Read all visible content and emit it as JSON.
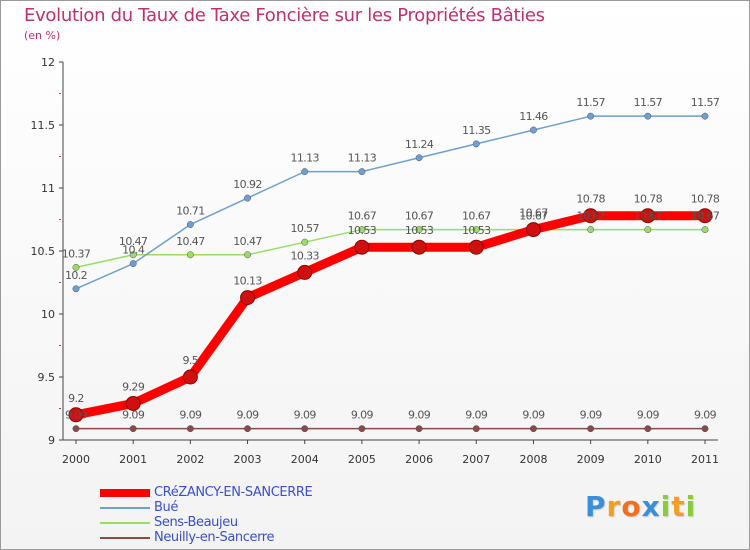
{
  "chart_data": {
    "type": "line",
    "title": "Evolution du Taux de Taxe Foncière sur les Propriétés Bâties",
    "subtitle": "(en %)",
    "x": [
      "2000",
      "2001",
      "2002",
      "2003",
      "2004",
      "2005",
      "2006",
      "2007",
      "2008",
      "2009",
      "2010",
      "2011"
    ],
    "ylim": [
      9,
      12
    ],
    "yticks": [
      "9",
      "9.5",
      "10",
      "10.5",
      "11",
      "11.5",
      "12"
    ],
    "grid": false,
    "legend_position": "bottom-left",
    "series": [
      {
        "name": "CRéZANCY-EN-SANCERRE",
        "color": "#ff0000",
        "values": [
          9.2,
          9.29,
          9.5,
          10.13,
          10.33,
          10.53,
          10.53,
          10.53,
          10.67,
          10.78,
          10.78,
          10.78
        ],
        "labels": [
          "9.2",
          "9.29",
          "9.5",
          "10.13",
          "10.33",
          "10.53",
          "10.53",
          "10.53",
          "10.67",
          "10.78",
          "10.78",
          "10.78"
        ]
      },
      {
        "name": "Bué",
        "color": "#6f9fd0",
        "values": [
          10.2,
          10.4,
          10.71,
          10.92,
          11.13,
          11.13,
          11.24,
          11.35,
          11.46,
          11.57,
          11.57,
          11.57
        ],
        "labels": [
          "10.2",
          "10.4",
          "10.71",
          "10.92",
          "11.13",
          "11.13",
          "11.24",
          "11.35",
          "11.46",
          "11.57",
          "11.57",
          "11.57"
        ]
      },
      {
        "name": "Sens-Beaujeu",
        "color": "#99dd66",
        "values": [
          10.37,
          10.47,
          10.47,
          10.47,
          10.57,
          10.67,
          10.67,
          10.67,
          10.67,
          10.67,
          10.67,
          10.67
        ],
        "labels": [
          "10.37",
          "10.47",
          "10.47",
          "10.47",
          "10.57",
          "10.67",
          "10.67",
          "10.67",
          "10.67",
          "10.67",
          "10.67",
          "10.67"
        ]
      },
      {
        "name": "Neuilly-en-Sancerre",
        "color": "#8a4a4a",
        "values": [
          9.09,
          9.09,
          9.09,
          9.09,
          9.09,
          9.09,
          9.09,
          9.09,
          9.09,
          9.09,
          9.09,
          9.09
        ],
        "labels": [
          "9.09",
          "9.09",
          "9.09",
          "9.09",
          "9.09",
          "9.09",
          "9.09",
          "9.09",
          "9.09",
          "9.09",
          "9.09",
          "9.09"
        ]
      }
    ]
  },
  "logo": {
    "letters": [
      "P",
      "r",
      "o",
      "x",
      "i",
      "t",
      "i"
    ],
    "colors": [
      "#3a8fd8",
      "#f0a020",
      "#f07020",
      "#3a8fd8",
      "#8acb3a",
      "#f0a020",
      "#8acb3a"
    ]
  }
}
